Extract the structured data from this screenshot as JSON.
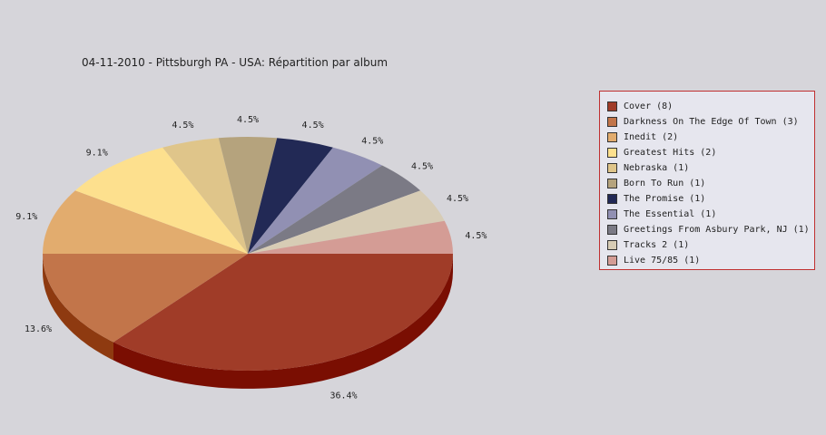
{
  "title": "04-11-2010 - Pittsburgh PA - USA:  Répartition par album",
  "chart_data": {
    "type": "pie",
    "title": "04-11-2010 - Pittsburgh PA - USA:  Répartition par album",
    "legend_position": "right",
    "slices": [
      {
        "label": "Cover",
        "count": 8,
        "legend": "Cover (8)",
        "percent": 36.4,
        "percent_label": "36.4%",
        "color": "#a03c28",
        "side_color": "#7a0e02"
      },
      {
        "label": "Darkness On The Edge Of Town",
        "count": 3,
        "legend": "Darkness On The Edge Of Town (3)",
        "percent": 13.6,
        "percent_label": "13.6%",
        "color": "#c2754a",
        "side_color": "#8e3a10"
      },
      {
        "label": "Inedit",
        "count": 2,
        "legend": "Inedit (2)",
        "percent": 9.1,
        "percent_label": "9.1%",
        "color": "#e2ac6e",
        "side_color": "#a87236"
      },
      {
        "label": "Greatest Hits",
        "count": 2,
        "legend": "Greatest Hits (2)",
        "percent": 9.1,
        "percent_label": "9.1%",
        "color": "#fde08e",
        "side_color": "#c0a050"
      },
      {
        "label": "Nebraska",
        "count": 1,
        "legend": "Nebraska (1)",
        "percent": 4.5,
        "percent_label": "4.5%",
        "color": "#dfc58a",
        "side_color": "#a08a50"
      },
      {
        "label": "Born To Run",
        "count": 1,
        "legend": "Born To Run (1)",
        "percent": 4.5,
        "percent_label": "4.5%",
        "color": "#b5a37d",
        "side_color": "#7d6d4a"
      },
      {
        "label": "The Promise",
        "count": 1,
        "legend": "The Promise (1)",
        "percent": 4.5,
        "percent_label": "4.5%",
        "color": "#222955",
        "side_color": "#101530"
      },
      {
        "label": "The Essential",
        "count": 1,
        "legend": "The Essential (1)",
        "percent": 4.5,
        "percent_label": "4.5%",
        "color": "#9190b3",
        "side_color": "#5e5d80"
      },
      {
        "label": "Greetings From Asbury Park, NJ",
        "count": 1,
        "legend": "Greetings From Asbury Park, NJ (1)",
        "percent": 4.5,
        "percent_label": "4.5%",
        "color": "#7b7a85",
        "side_color": "#4a4955"
      },
      {
        "label": "Tracks 2",
        "count": 1,
        "legend": "Tracks 2 (1)",
        "percent": 4.5,
        "percent_label": "4.5%",
        "color": "#d7ccb5",
        "side_color": "#a09680"
      },
      {
        "label": "Live 75/85",
        "count": 1,
        "legend": "Live 75/85 (1)",
        "percent": 4.5,
        "percent_label": "4.5%",
        "color": "#d49c95",
        "side_color": "#9a6660"
      }
    ]
  }
}
